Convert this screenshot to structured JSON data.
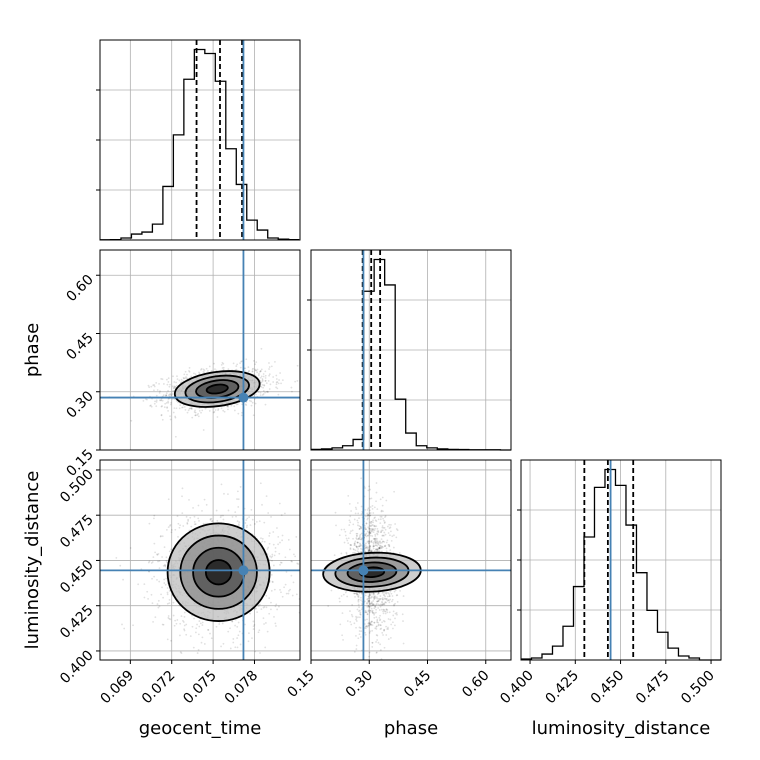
{
  "chart_data": {
    "type": "corner",
    "parameters": [
      "geocent_time",
      "phase",
      "luminosity_distance"
    ],
    "truth": {
      "geocent_time": 0.0772,
      "phase": 0.285,
      "luminosity_distance": 0.4445
    },
    "truth_color": "#4682b4",
    "grid": true,
    "axes": {
      "geocent_time": {
        "range": [
          0.0668,
          0.0813
        ],
        "ticks": [
          "0.069",
          "0.072",
          "0.075",
          "0.078"
        ],
        "tick_values": [
          0.069,
          0.072,
          0.075,
          0.078
        ]
      },
      "phase": {
        "range": [
          0.15,
          0.665
        ],
        "ticks": [
          "0.15",
          "0.30",
          "0.45",
          "0.60"
        ],
        "tick_values": [
          0.15,
          0.3,
          0.45,
          0.6
        ]
      },
      "luminosity_distance": {
        "range": [
          0.395,
          0.5055
        ],
        "ticks": [
          "0.400",
          "0.425",
          "0.450",
          "0.475",
          "0.500"
        ],
        "tick_values": [
          0.4,
          0.425,
          0.45,
          0.475,
          0.5
        ]
      }
    },
    "histograms": [
      {
        "parameter": "geocent_time",
        "bins": [
          0.0668,
          0.06756,
          0.06832,
          0.06908,
          0.06984,
          0.0706,
          0.07136,
          0.07212,
          0.07288,
          0.07364,
          0.0744,
          0.07516,
          0.07592,
          0.07668,
          0.07744,
          0.0782,
          0.07896,
          0.07972,
          0.08048,
          0.08124
        ],
        "counts": [
          0.1,
          0.2,
          1,
          3,
          4,
          8,
          27,
          53,
          81,
          96,
          94,
          80,
          46,
          28,
          10,
          5,
          1,
          0.4,
          0.2
        ],
        "quantiles": [
          0.0738,
          0.0755,
          0.0771
        ]
      },
      {
        "parameter": "phase",
        "bins": [
          0.15,
          0.1771,
          0.2042,
          0.2313,
          0.2584,
          0.2855,
          0.3126,
          0.3397,
          0.3668,
          0.3939,
          0.421,
          0.4481,
          0.4752,
          0.5023,
          0.5294,
          0.5565,
          0.5836,
          0.6107,
          0.6378,
          0.665
        ],
        "counts": [
          0.3,
          0.5,
          1,
          2,
          5,
          75,
          90,
          78,
          24,
          8,
          2,
          1,
          0.5,
          0.3,
          0.2,
          0.1,
          0.1,
          0.1,
          0
        ],
        "quantiles": [
          0.283,
          0.305,
          0.328
        ]
      },
      {
        "parameter": "luminosity_distance",
        "bins": [
          0.395,
          0.4008,
          0.4066,
          0.4124,
          0.4182,
          0.424,
          0.4298,
          0.4356,
          0.4414,
          0.4472,
          0.453,
          0.4588,
          0.4646,
          0.4704,
          0.4762,
          0.482,
          0.4878,
          0.4936,
          0.4994,
          0.5055
        ],
        "counts": [
          0.5,
          1,
          3,
          7,
          17,
          37,
          62,
          87,
          96,
          88,
          68,
          44,
          25,
          14,
          6,
          2,
          1,
          0,
          0
        ],
        "quantiles": [
          0.43,
          0.443,
          0.457
        ]
      }
    ],
    "density_2d": [
      {
        "x": "geocent_time",
        "y": "phase",
        "center": [
          0.0753,
          0.307
        ],
        "sd": [
          0.00155,
          0.022
        ],
        "rho": 0.3
      },
      {
        "x": "geocent_time",
        "y": "luminosity_distance",
        "center": [
          0.0754,
          0.4435
        ],
        "sd": [
          0.00185,
          0.0135
        ],
        "rho": 0.0
      },
      {
        "x": "phase",
        "y": "luminosity_distance",
        "center": [
          0.307,
          0.4435
        ],
        "sd": [
          0.025,
          0.0135
        ],
        "rho": -0.1
      }
    ],
    "contour_levels": [
      0.5,
      1.0,
      1.5,
      2.0
    ]
  }
}
